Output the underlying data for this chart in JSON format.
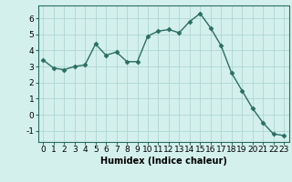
{
  "x": [
    0,
    1,
    2,
    3,
    4,
    5,
    6,
    7,
    8,
    9,
    10,
    11,
    12,
    13,
    14,
    15,
    16,
    17,
    18,
    19,
    20,
    21,
    22,
    23
  ],
  "y": [
    3.4,
    2.9,
    2.8,
    3.0,
    3.1,
    4.4,
    3.7,
    3.9,
    3.3,
    3.3,
    4.9,
    5.2,
    5.3,
    5.1,
    5.8,
    6.3,
    5.4,
    4.3,
    2.6,
    1.5,
    0.4,
    -0.5,
    -1.2,
    -1.3
  ],
  "line_color": "#2a6e62",
  "marker": "D",
  "markersize": 2.5,
  "linewidth": 1.0,
  "bg_color": "#d4f0ec",
  "grid_color": "#aed8d2",
  "xlabel": "Humidex (Indice chaleur)",
  "xlim": [
    -0.5,
    23.5
  ],
  "ylim": [
    -1.7,
    6.8
  ],
  "yticks": [
    -1,
    0,
    1,
    2,
    3,
    4,
    5,
    6
  ],
  "xticks": [
    0,
    1,
    2,
    3,
    4,
    5,
    6,
    7,
    8,
    9,
    10,
    11,
    12,
    13,
    14,
    15,
    16,
    17,
    18,
    19,
    20,
    21,
    22,
    23
  ],
  "xlabel_fontsize": 7.0,
  "tick_fontsize": 6.5
}
